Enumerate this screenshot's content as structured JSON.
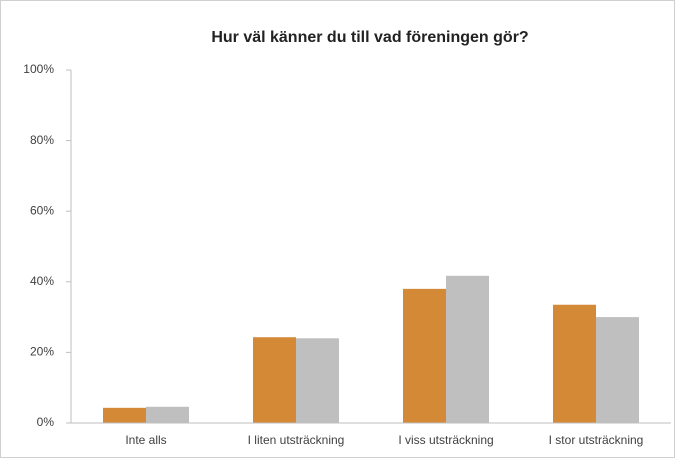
{
  "chart_data": {
    "type": "bar",
    "title": "Hur väl känner du till vad föreningen gör?",
    "categories": [
      "Inte alls",
      "I liten utsträckning",
      "I viss utsträckning",
      "I stor utsträckning"
    ],
    "series": [
      {
        "color": "#d38936",
        "values": [
          4.3,
          24.3,
          38,
          33.5
        ]
      },
      {
        "color": "#bfbfbf",
        "values": [
          4.6,
          24,
          41.7,
          30
        ]
      }
    ],
    "ylim": [
      0,
      100
    ],
    "yticks": [
      {
        "value": 0,
        "label": "0%"
      },
      {
        "value": 20,
        "label": "20%"
      },
      {
        "value": 40,
        "label": "40%"
      },
      {
        "value": 60,
        "label": "60%"
      },
      {
        "value": 80,
        "label": "80%"
      },
      {
        "value": 100,
        "label": "100%"
      }
    ],
    "grid": false
  }
}
